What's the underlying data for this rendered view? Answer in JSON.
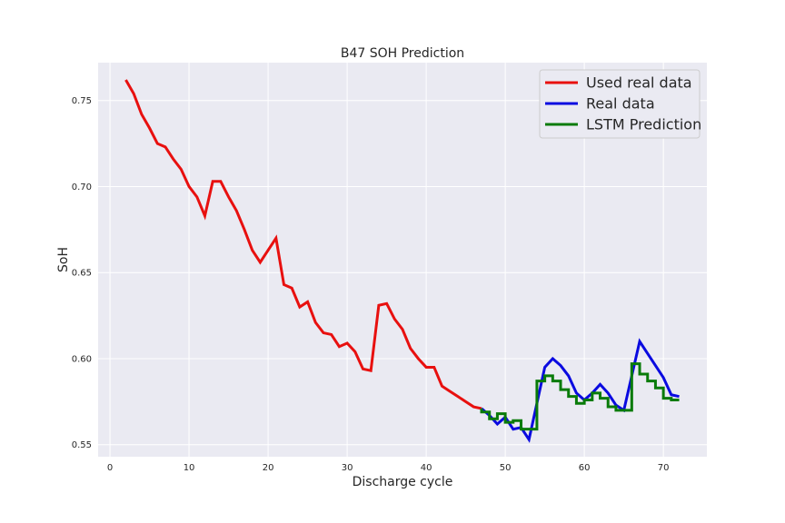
{
  "chart_data": {
    "type": "line",
    "title": "B47 SOH Prediction",
    "xlabel": "Discharge cycle",
    "ylabel": "SoH",
    "xlim": [
      -1.5,
      75.5
    ],
    "ylim": [
      0.543,
      0.772
    ],
    "xticks": [
      0,
      10,
      20,
      30,
      40,
      50,
      60,
      70
    ],
    "yticks": [
      0.55,
      0.6,
      0.65,
      0.7,
      0.75
    ],
    "grid": true,
    "legend_position": "top-right",
    "series": [
      {
        "name": "Used real data",
        "color": "#e8100f",
        "style": "line",
        "x": [
          2,
          3,
          4,
          5,
          6,
          7,
          8,
          9,
          10,
          11,
          12,
          13,
          14,
          15,
          16,
          17,
          18,
          19,
          20,
          21,
          22,
          23,
          24,
          25,
          26,
          27,
          28,
          29,
          30,
          31,
          32,
          33,
          34,
          35,
          36,
          37,
          38,
          39,
          40,
          41,
          42,
          43,
          44,
          45,
          46,
          47
        ],
        "y": [
          0.762,
          0.754,
          0.742,
          0.734,
          0.725,
          0.723,
          0.716,
          0.71,
          0.7,
          0.694,
          0.683,
          0.703,
          0.703,
          0.694,
          0.686,
          0.675,
          0.663,
          0.656,
          0.663,
          0.67,
          0.643,
          0.641,
          0.63,
          0.633,
          0.621,
          0.615,
          0.614,
          0.607,
          0.609,
          0.604,
          0.594,
          0.593,
          0.631,
          0.632,
          0.623,
          0.617,
          0.606,
          0.6,
          0.595,
          0.595,
          0.584,
          0.581,
          0.578,
          0.575,
          0.572,
          0.571
        ]
      },
      {
        "name": "Real data",
        "color": "#0a0ae0",
        "style": "line",
        "x": [
          47,
          48,
          49,
          50,
          51,
          52,
          53,
          54,
          55,
          56,
          57,
          58,
          59,
          60,
          61,
          62,
          63,
          64,
          65,
          66,
          67,
          68,
          69,
          70,
          71,
          72
        ],
        "y": [
          0.571,
          0.567,
          0.562,
          0.566,
          0.559,
          0.56,
          0.553,
          0.574,
          0.595,
          0.6,
          0.596,
          0.59,
          0.58,
          0.576,
          0.58,
          0.585,
          0.58,
          0.573,
          0.57,
          0.59,
          0.61,
          0.603,
          0.596,
          0.589,
          0.579,
          0.578
        ]
      },
      {
        "name": "LSTM Prediction",
        "color": "#097b09",
        "style": "step",
        "x": [
          47,
          48,
          49,
          50,
          51,
          52,
          53,
          54,
          55,
          56,
          57,
          58,
          59,
          60,
          61,
          62,
          63,
          64,
          65,
          66,
          67,
          68,
          69,
          70,
          71,
          72
        ],
        "y": [
          0.571,
          0.569,
          0.565,
          0.568,
          0.563,
          0.564,
          0.559,
          0.559,
          0.587,
          0.59,
          0.587,
          0.582,
          0.578,
          0.574,
          0.576,
          0.58,
          0.577,
          0.572,
          0.57,
          0.57,
          0.597,
          0.591,
          0.587,
          0.583,
          0.577,
          0.576
        ]
      }
    ]
  }
}
